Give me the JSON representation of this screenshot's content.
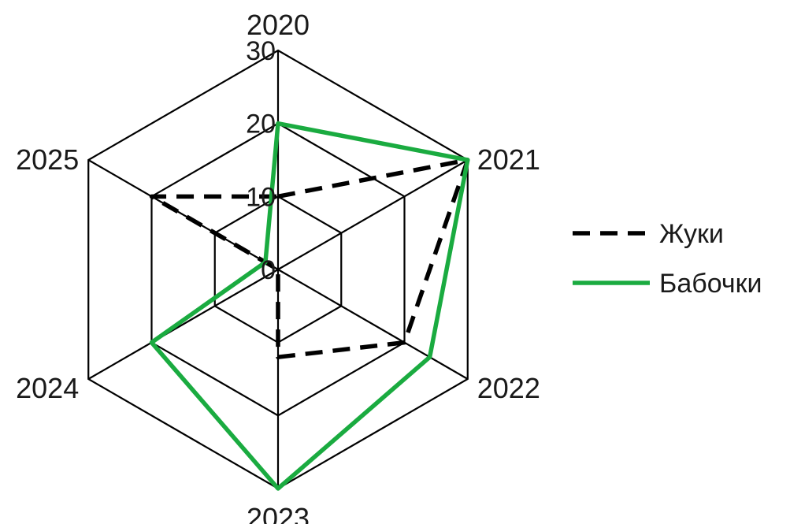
{
  "chart_data": {
    "type": "radar",
    "categories": [
      "2020",
      "2021",
      "2022",
      "2023",
      "2024",
      "2025"
    ],
    "series": [
      {
        "name": "Жуки",
        "values": [
          10,
          30,
          20,
          12,
          0,
          20
        ],
        "color": "#000000",
        "style": "dashed"
      },
      {
        "name": "Бабочки",
        "values": [
          20,
          30,
          24,
          30,
          20,
          2
        ],
        "color": "#1aab40",
        "style": "solid"
      }
    ],
    "rticks": [
      "0",
      "10",
      "20",
      "30"
    ],
    "rlim": [
      0,
      30
    ],
    "grid": true,
    "legend": "right"
  }
}
